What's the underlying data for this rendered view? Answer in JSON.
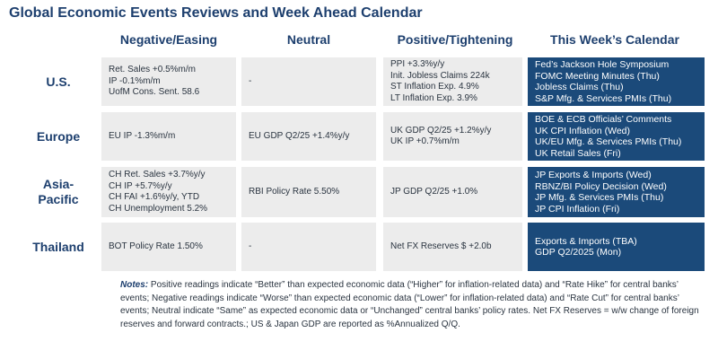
{
  "title": "Global Economic Events Reviews and Week Ahead Calendar",
  "columns": [
    "Negative/Easing",
    "Neutral",
    "Positive/Tightening",
    "This Week’s Calendar"
  ],
  "rows": [
    {
      "label": "U.S.",
      "negative": [
        "Ret. Sales +0.5%m/m",
        "IP -0.1%m/m",
        "UofM Cons. Sent. 58.6"
      ],
      "neutral": [
        "-"
      ],
      "positive": [
        "PPI +3.3%y/y",
        "Init. Jobless Claims 224k",
        "ST Inflation Exp. 4.9%",
        "LT Inflation Exp. 3.9%"
      ],
      "calendar": [
        "Fed’s Jackson Hole Symposium",
        "FOMC Meeting Minutes (Thu)",
        "Jobless Claims (Thu)",
        "S&P Mfg. & Services PMIs (Thu)"
      ]
    },
    {
      "label": "Europe",
      "negative": [
        "EU IP -1.3%m/m"
      ],
      "neutral": [
        "EU GDP Q2/25 +1.4%y/y"
      ],
      "positive": [
        "UK GDP Q2/25 +1.2%y/y",
        "UK IP +0.7%m/m"
      ],
      "calendar": [
        "BOE & ECB Officials’ Comments",
        "UK CPI Inflation (Wed)",
        "UK/EU Mfg. & Services PMIs (Thu)",
        "UK Retail Sales (Fri)"
      ]
    },
    {
      "label": "Asia-Pacific",
      "negative": [
        "CH Ret. Sales +3.7%y/y",
        "CH IP +5.7%y/y",
        "CH FAI +1.6%y/y, YTD",
        "CH Unemployment 5.2%"
      ],
      "neutral": [
        "RBI Policy Rate 5.50%"
      ],
      "positive": [
        "JP GDP Q2/25 +1.0%"
      ],
      "calendar": [
        "JP Exports & Imports (Wed)",
        "RBNZ/BI Policy Decision (Wed)",
        "JP Mfg. & Services PMIs (Thu)",
        "JP CPI Inflation (Fri)"
      ]
    },
    {
      "label": "Thailand",
      "negative": [
        "BOT Policy Rate 1.50%"
      ],
      "neutral": [
        "-"
      ],
      "positive": [
        "Net FX Reserves $ +2.0b"
      ],
      "calendar": [
        "Exports & Imports (TBA)",
        "GDP Q2/2025 (Mon)"
      ]
    }
  ],
  "notes": {
    "label": "Notes:",
    "text": " Positive readings indicate “Better” than expected economic data (“Higher” for inflation-related data) and “Rate Hike” for central banks’ events; Negative readings indicate “Worse” than expected economic data (“Lower” for inflation-related data) and “Rate Cut” for central banks’ events; Neutral indicate “Same” as expected economic data or “Unchanged” central banks’ policy rates. Net FX Reserves = w/w change of foreign reserves and forward contracts.; US & Japan GDP are reported as %Annualized Q/Q."
  }
}
